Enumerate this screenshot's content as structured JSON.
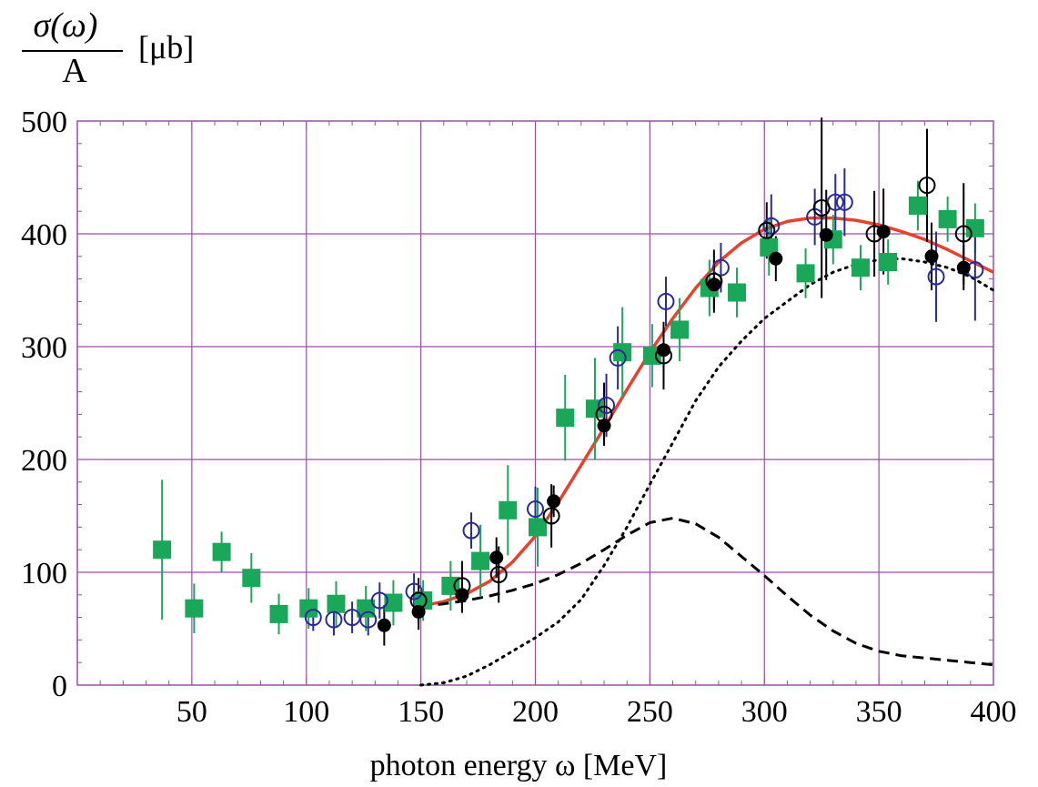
{
  "chart_data": {
    "type": "scatter",
    "ylabel_numerator": "σ(ω)",
    "ylabel_denominator": "A",
    "ylabel_unit": "[μb]",
    "xlabel": "photon energy ω  [MeV]",
    "xlim": [
      0,
      400
    ],
    "ylim": [
      0,
      500
    ],
    "x_ticks": [
      50,
      100,
      150,
      200,
      250,
      300,
      350,
      400
    ],
    "y_ticks": [
      0,
      100,
      200,
      300,
      400,
      500
    ],
    "x_grid": [
      50,
      100,
      150,
      200,
      250,
      300,
      350
    ],
    "y_grid": [
      100,
      200,
      300,
      400
    ],
    "grid": true,
    "colors": {
      "grid": "#9a4fa8",
      "frame": "#9a4fa8",
      "green": "#1aa75a",
      "blue": "#2a2a9a",
      "black": "#000000",
      "red": "#e8412c"
    },
    "series": [
      {
        "marker": "square",
        "color": "#1aa75a",
        "points": [
          {
            "x": 37,
            "y": 120,
            "err": 62
          },
          {
            "x": 51,
            "y": 68,
            "err": 22
          },
          {
            "x": 63,
            "y": 118,
            "err": 18
          },
          {
            "x": 76,
            "y": 95,
            "err": 22
          },
          {
            "x": 88,
            "y": 63,
            "err": 18
          },
          {
            "x": 101,
            "y": 68,
            "err": 18
          },
          {
            "x": 113,
            "y": 72,
            "err": 20
          },
          {
            "x": 126,
            "y": 68,
            "err": 20
          },
          {
            "x": 138,
            "y": 73,
            "err": 20
          },
          {
            "x": 151,
            "y": 75,
            "err": 18
          },
          {
            "x": 163,
            "y": 88,
            "err": 22
          },
          {
            "x": 176,
            "y": 110,
            "err": 32
          },
          {
            "x": 188,
            "y": 155,
            "err": 40
          },
          {
            "x": 201,
            "y": 140,
            "err": 35
          },
          {
            "x": 213,
            "y": 237,
            "err": 38
          },
          {
            "x": 226,
            "y": 245,
            "err": 45
          },
          {
            "x": 238,
            "y": 295,
            "err": 40
          },
          {
            "x": 251,
            "y": 292,
            "err": 28
          },
          {
            "x": 263,
            "y": 315,
            "err": 28
          },
          {
            "x": 276,
            "y": 352,
            "err": 25
          },
          {
            "x": 288,
            "y": 348,
            "err": 22
          },
          {
            "x": 302,
            "y": 388,
            "err": 25
          },
          {
            "x": 318,
            "y": 365,
            "err": 22
          },
          {
            "x": 330,
            "y": 395,
            "err": 22
          },
          {
            "x": 342,
            "y": 370,
            "err": 20
          },
          {
            "x": 354,
            "y": 375,
            "err": 20
          },
          {
            "x": 367,
            "y": 425,
            "err": 22
          },
          {
            "x": 380,
            "y": 413,
            "err": 20
          },
          {
            "x": 392,
            "y": 405,
            "err": 22
          }
        ]
      },
      {
        "marker": "open-circle",
        "color": "#2a2a9a",
        "points": [
          {
            "x": 103,
            "y": 60,
            "err": 12
          },
          {
            "x": 112,
            "y": 58,
            "err": 14
          },
          {
            "x": 120,
            "y": 60,
            "err": 14
          },
          {
            "x": 127,
            "y": 58,
            "err": 14
          },
          {
            "x": 132,
            "y": 75,
            "err": 16
          },
          {
            "x": 147,
            "y": 83,
            "err": 16
          },
          {
            "x": 172,
            "y": 137,
            "err": 16
          },
          {
            "x": 200,
            "y": 156,
            "err": 20
          },
          {
            "x": 231,
            "y": 248,
            "err": 28
          },
          {
            "x": 236,
            "y": 290,
            "err": 28
          },
          {
            "x": 257,
            "y": 340,
            "err": 22
          },
          {
            "x": 281,
            "y": 370,
            "err": 22
          },
          {
            "x": 303,
            "y": 407,
            "err": 28
          },
          {
            "x": 322,
            "y": 415,
            "err": 25
          },
          {
            "x": 331,
            "y": 428,
            "err": 25
          },
          {
            "x": 335,
            "y": 428,
            "err": 30
          },
          {
            "x": 375,
            "y": 362,
            "err": 40
          },
          {
            "x": 392,
            "y": 368,
            "err": 45
          }
        ]
      },
      {
        "marker": "open-circle",
        "color": "#000000",
        "points": [
          {
            "x": 149,
            "y": 75,
            "err": 20
          },
          {
            "x": 168,
            "y": 88,
            "err": 22
          },
          {
            "x": 184,
            "y": 98,
            "err": 25
          },
          {
            "x": 207,
            "y": 150,
            "err": 28
          },
          {
            "x": 230,
            "y": 240,
            "err": 28
          },
          {
            "x": 256,
            "y": 292,
            "err": 30
          },
          {
            "x": 278,
            "y": 358,
            "err": 28
          },
          {
            "x": 301,
            "y": 403,
            "err": 25
          },
          {
            "x": 325,
            "y": 423,
            "err": 80
          },
          {
            "x": 348,
            "y": 400,
            "err": 38
          },
          {
            "x": 371,
            "y": 443,
            "err": 50
          },
          {
            "x": 387,
            "y": 400,
            "err": 45
          }
        ]
      },
      {
        "marker": "filled-circle",
        "color": "#000000",
        "points": [
          {
            "x": 134,
            "y": 53,
            "err": 18
          },
          {
            "x": 149,
            "y": 65,
            "err": 16
          },
          {
            "x": 168,
            "y": 80,
            "err": 16
          },
          {
            "x": 183,
            "y": 113,
            "err": 18
          },
          {
            "x": 208,
            "y": 163,
            "err": 14
          },
          {
            "x": 230,
            "y": 230,
            "err": 16
          },
          {
            "x": 256,
            "y": 297,
            "err": 20
          },
          {
            "x": 278,
            "y": 355,
            "err": 22
          },
          {
            "x": 305,
            "y": 378,
            "err": 20
          },
          {
            "x": 327,
            "y": 399,
            "err": 40
          },
          {
            "x": 352,
            "y": 402,
            "err": 38
          },
          {
            "x": 373,
            "y": 380,
            "err": 30
          },
          {
            "x": 387,
            "y": 370,
            "err": 20
          }
        ]
      }
    ],
    "curves": [
      {
        "style": "solid",
        "color": "#e8412c",
        "x": [
          150,
          160,
          170,
          180,
          190,
          200,
          210,
          220,
          230,
          240,
          250,
          260,
          270,
          280,
          290,
          300,
          310,
          320,
          330,
          340,
          350,
          360,
          370,
          380,
          390,
          400
        ],
        "y": [
          70,
          74,
          81,
          92,
          109,
          132,
          162,
          195,
          228,
          262,
          295,
          325,
          352,
          375,
          392,
          404,
          411,
          414,
          414,
          412,
          408,
          402,
          395,
          386,
          376,
          366
        ]
      },
      {
        "style": "dashed",
        "color": "#000000",
        "x": [
          150,
          160,
          170,
          180,
          190,
          200,
          210,
          220,
          230,
          240,
          250,
          260,
          270,
          280,
          290,
          300,
          310,
          320,
          330,
          340,
          350,
          360,
          370,
          380,
          390,
          400
        ],
        "y": [
          70,
          72,
          75,
          79,
          84,
          90,
          98,
          108,
          120,
          133,
          144,
          148,
          143,
          131,
          114,
          97,
          79,
          62,
          48,
          37,
          30,
          26,
          24,
          22,
          20,
          18
        ]
      },
      {
        "style": "dotted",
        "color": "#000000",
        "x": [
          150,
          160,
          170,
          180,
          190,
          200,
          210,
          220,
          230,
          240,
          250,
          260,
          270,
          280,
          290,
          300,
          310,
          320,
          330,
          340,
          350,
          360,
          370,
          380,
          390,
          400
        ],
        "y": [
          0,
          2,
          8,
          18,
          30,
          42,
          56,
          76,
          106,
          140,
          178,
          215,
          252,
          282,
          305,
          325,
          340,
          355,
          366,
          373,
          377,
          378,
          375,
          370,
          362,
          350
        ]
      }
    ]
  }
}
